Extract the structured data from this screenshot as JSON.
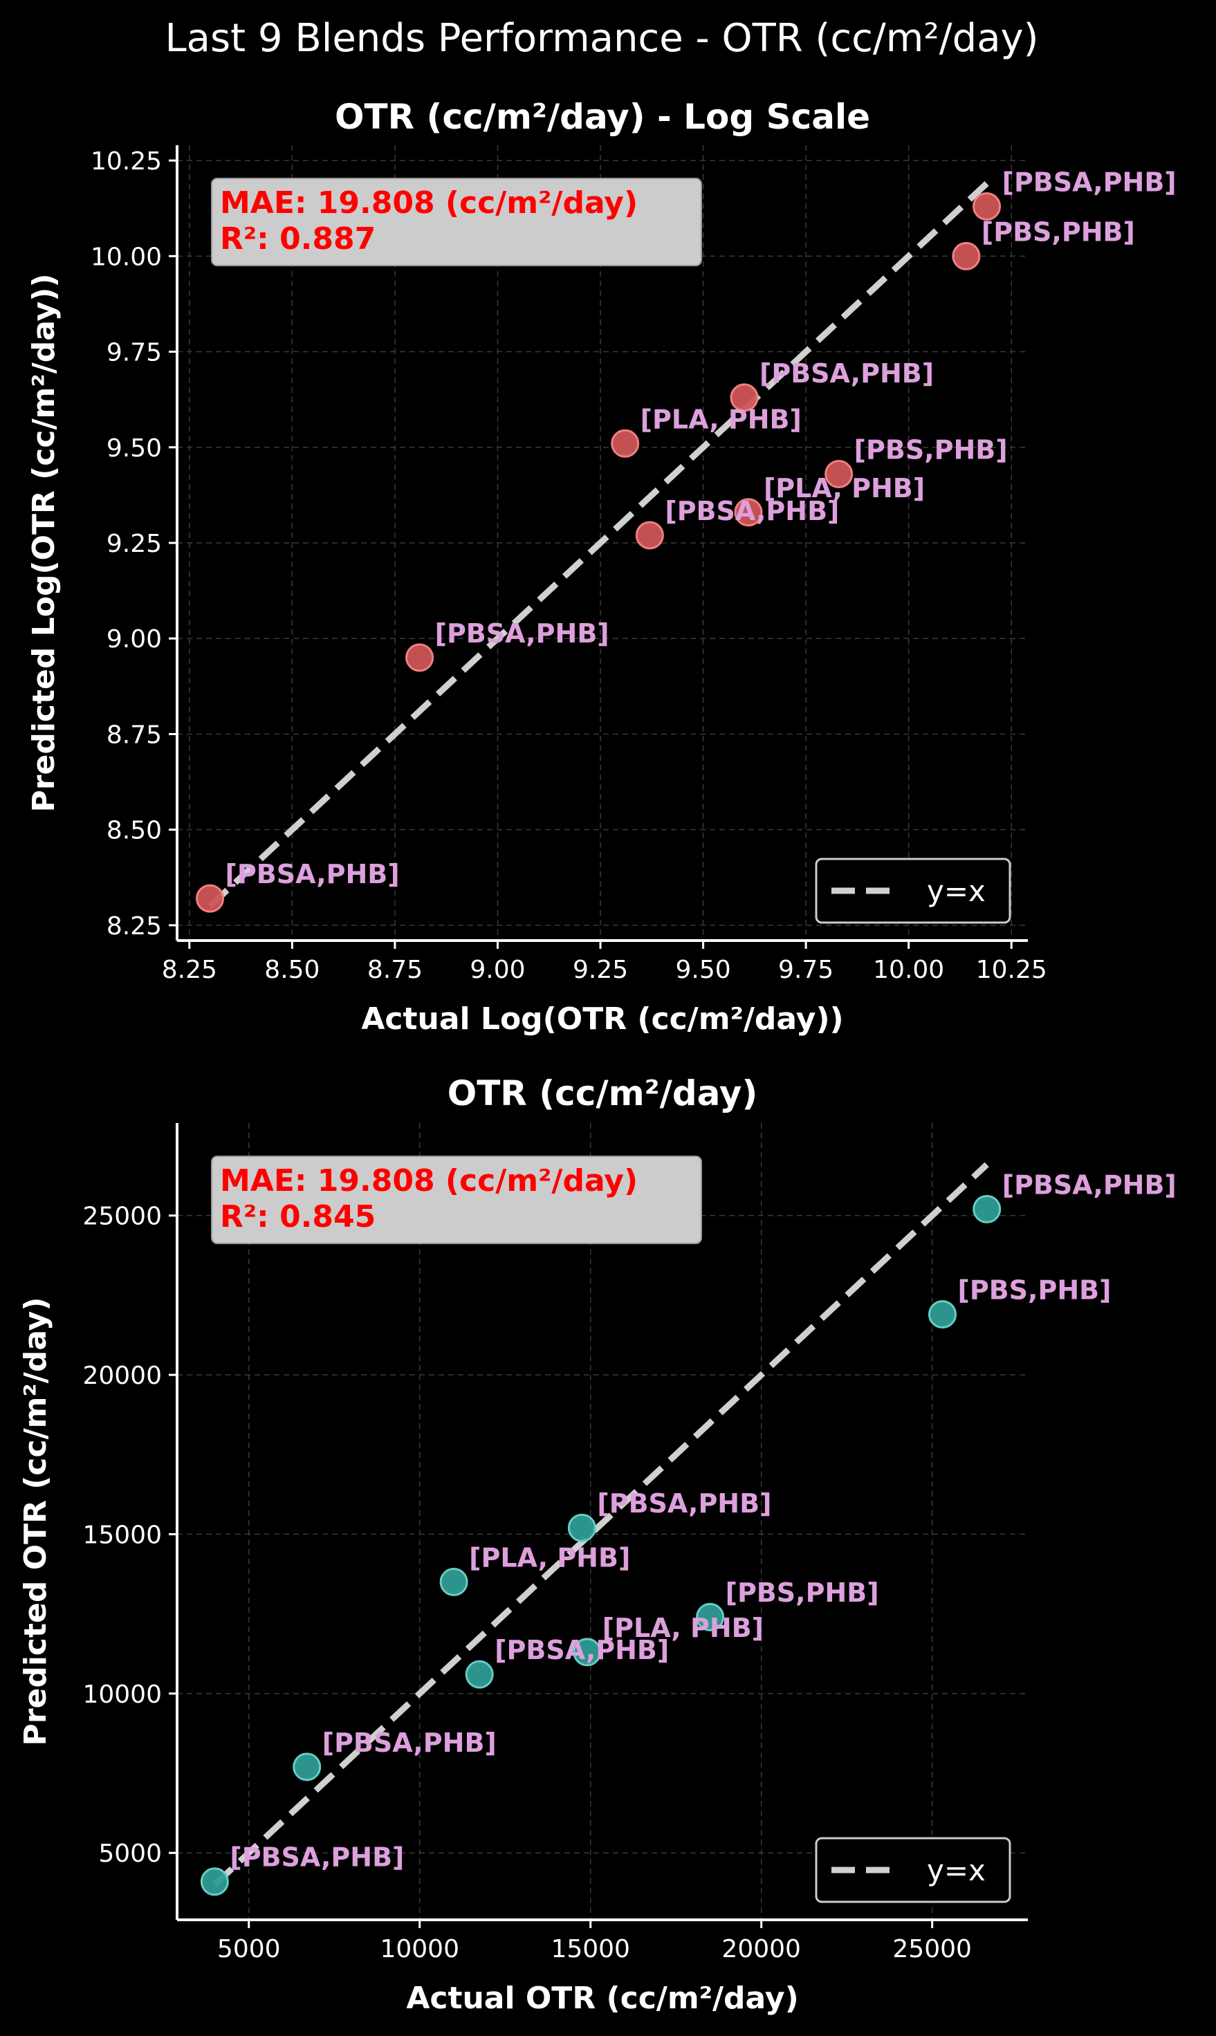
{
  "figure_title": "Last 9 Blends Performance - OTR (cc/m²/day)",
  "colors": {
    "background": "#000000",
    "axis": "#ffffff",
    "grid": "#3a3a3a",
    "label": "#dda0dd",
    "metrics_text": "#ff0000",
    "metrics_box": "#cccccc",
    "diagonal": "#d0d0d0",
    "legend_border": "#cccccc"
  },
  "chart_data": [
    {
      "type": "scatter",
      "title": "OTR (cc/m²/day) - Log Scale",
      "xlabel": "Actual Log(OTR (cc/m²/day))",
      "ylabel": "Predicted Log(OTR (cc/m²/day))",
      "xlim": [
        8.22,
        10.29
      ],
      "ylim": [
        8.21,
        10.29
      ],
      "xticks": [
        8.25,
        8.5,
        8.75,
        9.0,
        9.25,
        9.5,
        9.75,
        10.0,
        10.25
      ],
      "yticks": [
        8.25,
        8.5,
        8.75,
        9.0,
        9.25,
        9.5,
        9.75,
        10.0,
        10.25
      ],
      "xtick_labels": [
        "8.25",
        "8.50",
        "8.75",
        "9.00",
        "9.25",
        "9.50",
        "9.75",
        "10.00",
        "10.25"
      ],
      "ytick_labels": [
        "8.25",
        "8.50",
        "8.75",
        "9.00",
        "9.25",
        "9.50",
        "9.75",
        "10.00",
        "10.25"
      ],
      "grid": true,
      "marker_color": "#cd5555",
      "marker_edge": "#f08080",
      "metrics": [
        "MAE: 19.808 (cc/m²/day)",
        "R²: 0.887"
      ],
      "identity_line": {
        "from": 8.3,
        "to": 10.19
      },
      "legend": {
        "label": "y=x",
        "placement": "lower-right"
      },
      "points": [
        {
          "x": 8.3,
          "y": 8.32,
          "label": "[PBSA,PHB]"
        },
        {
          "x": 8.81,
          "y": 8.95,
          "label": "[PBSA,PHB]"
        },
        {
          "x": 9.31,
          "y": 9.51,
          "label": "[PLA, PHB]"
        },
        {
          "x": 9.37,
          "y": 9.27,
          "label": "[PBSA,PHB]"
        },
        {
          "x": 9.6,
          "y": 9.63,
          "label": "[PBSA,PHB]"
        },
        {
          "x": 9.61,
          "y": 9.33,
          "label": "[PLA, PHB]"
        },
        {
          "x": 9.83,
          "y": 9.43,
          "label": "[PBS,PHB]"
        },
        {
          "x": 10.14,
          "y": 10.0,
          "label": "[PBS,PHB]"
        },
        {
          "x": 10.19,
          "y": 10.13,
          "label": "[PBSA,PHB]"
        }
      ]
    },
    {
      "type": "scatter",
      "title": "OTR (cc/m²/day)",
      "xlabel": "Actual OTR (cc/m²/day)",
      "ylabel": "Predicted OTR (cc/m²/day)",
      "xlim": [
        2900,
        27800
      ],
      "ylim": [
        2900,
        27900
      ],
      "xticks": [
        5000,
        10000,
        15000,
        20000,
        25000
      ],
      "yticks": [
        5000,
        10000,
        15000,
        20000,
        25000
      ],
      "xtick_labels": [
        "5000",
        "10000",
        "15000",
        "20000",
        "25000"
      ],
      "ytick_labels": [
        "5000",
        "10000",
        "15000",
        "20000",
        "25000"
      ],
      "grid": true,
      "marker_color": "#2e9c94",
      "marker_edge": "#66cdc4",
      "metrics": [
        "MAE: 19.808 (cc/m²/day)",
        "R²: 0.845"
      ],
      "identity_line": {
        "from": 4000,
        "to": 26600
      },
      "legend": {
        "label": "y=x",
        "placement": "lower-right"
      },
      "points": [
        {
          "x": 4000,
          "y": 4100,
          "label": "[PBSA,PHB]"
        },
        {
          "x": 6700,
          "y": 7700,
          "label": "[PBSA,PHB]"
        },
        {
          "x": 11000,
          "y": 13500,
          "label": "[PLA, PHB]"
        },
        {
          "x": 11750,
          "y": 10600,
          "label": "[PBSA,PHB]"
        },
        {
          "x": 14750,
          "y": 15200,
          "label": "[PBSA,PHB]"
        },
        {
          "x": 14900,
          "y": 11300,
          "label": "[PLA, PHB]"
        },
        {
          "x": 18500,
          "y": 12400,
          "label": "[PBS,PHB]"
        },
        {
          "x": 25300,
          "y": 21900,
          "label": "[PBS,PHB]"
        },
        {
          "x": 26600,
          "y": 25200,
          "label": "[PBSA,PHB]"
        }
      ]
    }
  ]
}
